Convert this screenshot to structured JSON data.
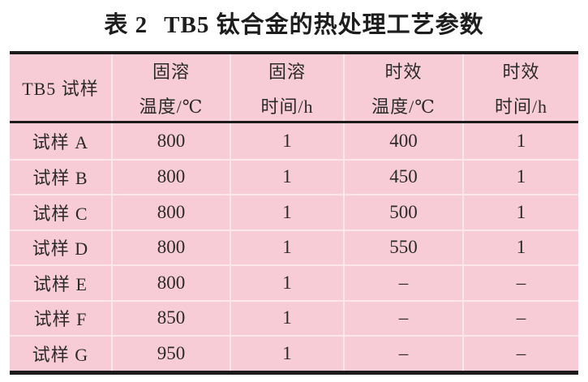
{
  "title": {
    "prefix": "表 2",
    "text": "TB5 钛合金的热处理工艺参数"
  },
  "colors": {
    "table_background": "#f8ccd7",
    "grid_line": "#fde7ec",
    "rule_black": "#1b1b1b",
    "text": "#2a2a2a",
    "page_background": "#ffffff"
  },
  "table": {
    "sample_header": "TB5 试样",
    "headers": [
      {
        "line1": "固溶",
        "line2": "温度/℃"
      },
      {
        "line1": "固溶",
        "line2": "时间/h"
      },
      {
        "line1": "时效",
        "line2": "温度/℃"
      },
      {
        "line1": "时效",
        "line2": "时间/h"
      }
    ],
    "rows": [
      {
        "sample": "试样 A",
        "sol_temp": "800",
        "sol_time": "1",
        "age_temp": "400",
        "age_time": "1"
      },
      {
        "sample": "试样 B",
        "sol_temp": "800",
        "sol_time": "1",
        "age_temp": "450",
        "age_time": "1"
      },
      {
        "sample": "试样 C",
        "sol_temp": "800",
        "sol_time": "1",
        "age_temp": "500",
        "age_time": "1"
      },
      {
        "sample": "试样 D",
        "sol_temp": "800",
        "sol_time": "1",
        "age_temp": "550",
        "age_time": "1"
      },
      {
        "sample": "试样 E",
        "sol_temp": "800",
        "sol_time": "1",
        "age_temp": "–",
        "age_time": "–"
      },
      {
        "sample": "试样 F",
        "sol_temp": "850",
        "sol_time": "1",
        "age_temp": "–",
        "age_time": "–"
      },
      {
        "sample": "试样 G",
        "sol_temp": "950",
        "sol_time": "1",
        "age_temp": "–",
        "age_time": "–"
      }
    ]
  }
}
